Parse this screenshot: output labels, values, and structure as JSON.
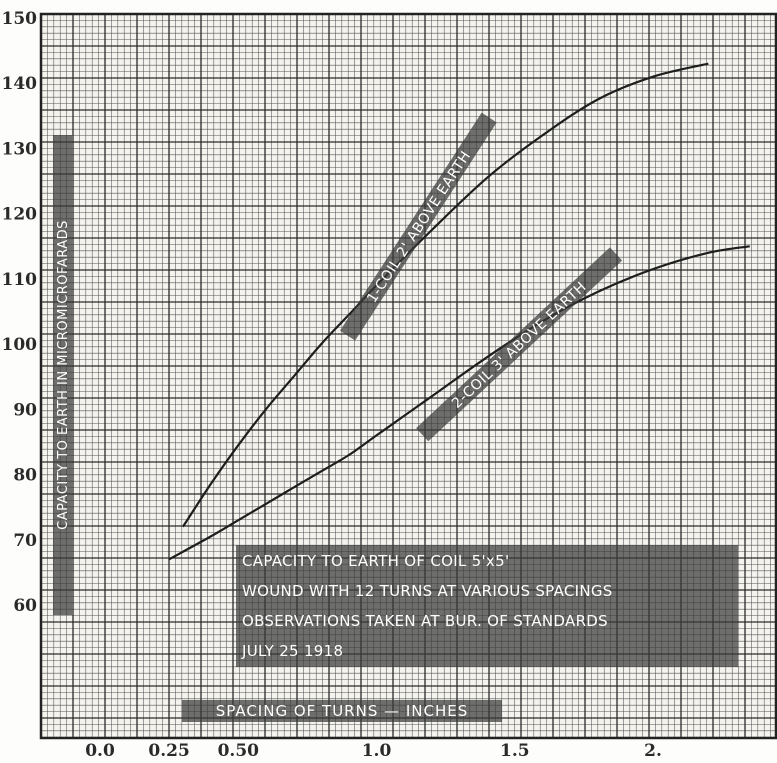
{
  "chart_data": {
    "type": "line",
    "title": "",
    "xlabel": "SPACING OF TURNS — INCHES",
    "ylabel": "CAPACITY TO EARTH IN MICROMICROFARADS",
    "xlim": [
      -0.25,
      2.5
    ],
    "ylim": [
      50,
      150
    ],
    "x_ticks": [
      {
        "value": 0.0,
        "label": "0.0"
      },
      {
        "value": 0.25,
        "label": "0.25"
      },
      {
        "value": 0.5,
        "label": "0.50"
      },
      {
        "value": 1.0,
        "label": "1.0"
      },
      {
        "value": 1.5,
        "label": "1.5"
      },
      {
        "value": 2.0,
        "label": "2."
      }
    ],
    "y_ticks": [
      {
        "value": 60,
        "label": "60"
      },
      {
        "value": 70,
        "label": "70"
      },
      {
        "value": 80,
        "label": "80"
      },
      {
        "value": 90,
        "label": "90"
      },
      {
        "value": 100,
        "label": "100"
      },
      {
        "value": 110,
        "label": "110"
      },
      {
        "value": 120,
        "label": "120"
      },
      {
        "value": 130,
        "label": "130"
      },
      {
        "value": 140,
        "label": "140"
      },
      {
        "value": 150,
        "label": "150"
      }
    ],
    "grid": true,
    "series": [
      {
        "name": "1-COIL 2' ABOVE EARTH",
        "x": [
          0.3,
          0.4,
          0.5,
          0.6,
          0.7,
          0.8,
          0.9,
          1.0,
          1.2,
          1.4,
          1.6,
          1.8,
          2.0,
          2.2
        ],
        "y": [
          72,
          78.5,
          84.5,
          90,
          95,
          100,
          104.5,
          109,
          117.5,
          125.5,
          132,
          137.5,
          141,
          143
        ]
      },
      {
        "name": "2-COIL 3' ABOVE EARTH",
        "x": [
          0.25,
          0.4,
          0.5,
          0.6,
          0.7,
          0.8,
          0.9,
          1.0,
          1.2,
          1.4,
          1.6,
          1.8,
          2.0,
          2.2,
          2.35
        ],
        "y": [
          67,
          70.5,
          73,
          75.5,
          78,
          80.5,
          83,
          86,
          92,
          98,
          103.5,
          108,
          111.5,
          114,
          115
        ]
      }
    ],
    "annotations": [
      "CAPACITY TO EARTH OF COIL 5'x5'",
      "WOUND WITH 12 TURNS AT VARIOUS SPACINGS",
      "OBSERVATIONS TAKEN AT BUR. OF STANDARDS",
      "JULY 25 1918"
    ]
  }
}
